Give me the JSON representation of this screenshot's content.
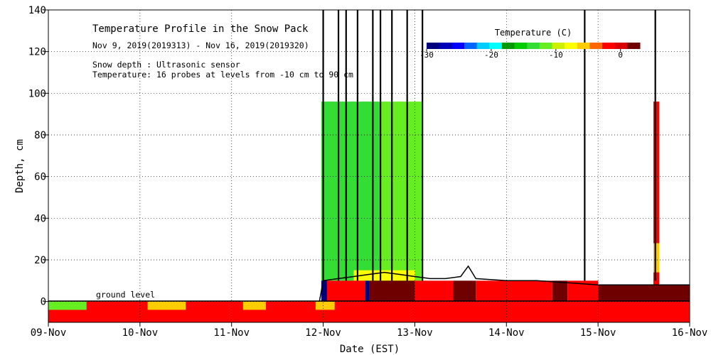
{
  "chart_data": {
    "type": "heatmap",
    "title": "Temperature Profile in the Snow Pack",
    "subtitle": "Nov  9, 2019(2019313) - Nov 16, 2019(2019320)",
    "notes": [
      "Snow depth : Ultrasonic sensor",
      "Temperature: 16 probes at levels from -10 cm to 90 cm"
    ],
    "xlabel": "Date (EST)",
    "ylabel": "Depth, cm",
    "x_ticks": [
      "09-Nov",
      "10-Nov",
      "11-Nov",
      "12-Nov",
      "13-Nov",
      "14-Nov",
      "15-Nov",
      "16-Nov"
    ],
    "xlim": [
      "2019-11-09",
      "2019-11-16"
    ],
    "y_ticks": [
      0,
      20,
      40,
      60,
      80,
      100,
      120,
      140
    ],
    "ylim": [
      -10,
      140
    ],
    "grid": true,
    "ground_level_label": "ground level",
    "colorbar": {
      "title": "Temperature (C)",
      "min": -30,
      "max": 3,
      "tick_values": [
        -30,
        -20,
        -10,
        0
      ],
      "tick_labels": [
        "-30",
        "-20",
        "-10",
        "0"
      ],
      "colors": [
        "#00007f",
        "#0000b8",
        "#0000ff",
        "#0066ff",
        "#00ccff",
        "#00ffff",
        "#009900",
        "#00cc00",
        "#33dd33",
        "#66ee22",
        "#ccf000",
        "#ffff00",
        "#ffcc00",
        "#ff6600",
        "#ff0000",
        "#d80000",
        "#6e0000"
      ]
    },
    "regions": [
      {
        "name": "soil-layer",
        "t0": "2019-11-09T00:00",
        "t1": "2019-11-16T00:00",
        "d0": -10,
        "d1": 0,
        "color": "#ff0000"
      },
      {
        "name": "surface-cool-1",
        "t0": "2019-11-09T00:00",
        "t1": "2019-11-09T10:00",
        "d0": -4,
        "d1": 0,
        "color": "#66ee22"
      },
      {
        "name": "surface-cool-2",
        "t0": "2019-11-10T02:00",
        "t1": "2019-11-10T12:00",
        "d0": -4,
        "d1": 0,
        "color": "#ffcc00"
      },
      {
        "name": "surface-cool-3",
        "t0": "2019-11-11T03:00",
        "t1": "2019-11-11T09:00",
        "d0": -4,
        "d1": 0,
        "color": "#ffcc00"
      },
      {
        "name": "surface-cool-4",
        "t0": "2019-11-11T22:00",
        "t1": "2019-11-12T03:00",
        "d0": -4,
        "d1": 0,
        "color": "#ffcc00"
      },
      {
        "name": "snow-cold-mid",
        "t0": "2019-11-11T23:30",
        "t1": "2019-11-12T15:00",
        "d0": 10,
        "d1": 96,
        "color": "#33dd33"
      },
      {
        "name": "snow-cold-late",
        "t0": "2019-11-12T15:00",
        "t1": "2019-11-13T02:00",
        "d0": 10,
        "d1": 96,
        "color": "#66ee22"
      },
      {
        "name": "snow-warm-layer",
        "t0": "2019-11-12T08:00",
        "t1": "2019-11-13T00:00",
        "d0": 10,
        "d1": 15,
        "color": "#ffff00"
      },
      {
        "name": "base-blue-1",
        "t0": "2019-11-11T23:30",
        "t1": "2019-11-12T01:00",
        "d0": 0,
        "d1": 10,
        "color": "#00007f"
      },
      {
        "name": "base-red-1",
        "t0": "2019-11-12T01:00",
        "t1": "2019-11-12T11:00",
        "d0": 0,
        "d1": 10,
        "color": "#ff0000"
      },
      {
        "name": "base-blue-2",
        "t0": "2019-11-12T11:00",
        "t1": "2019-11-12T12:00",
        "d0": 0,
        "d1": 10,
        "color": "#00007f"
      },
      {
        "name": "base-dark-1",
        "t0": "2019-11-12T12:00",
        "t1": "2019-11-13T00:00",
        "d0": 0,
        "d1": 10,
        "color": "#6e0000"
      },
      {
        "name": "base-red-2",
        "t0": "2019-11-13T00:00",
        "t1": "2019-11-13T10:00",
        "d0": 0,
        "d1": 10,
        "color": "#ff0000"
      },
      {
        "name": "base-dark-2",
        "t0": "2019-11-13T10:00",
        "t1": "2019-11-13T16:00",
        "d0": 0,
        "d1": 10,
        "color": "#6e0000"
      },
      {
        "name": "base-red-3",
        "t0": "2019-11-13T16:00",
        "t1": "2019-11-14T12:00",
        "d0": 0,
        "d1": 10,
        "color": "#ff0000"
      },
      {
        "name": "base-dark-3",
        "t0": "2019-11-14T12:00",
        "t1": "2019-11-14T16:00",
        "d0": 0,
        "d1": 10,
        "color": "#6e0000"
      },
      {
        "name": "base-red-4",
        "t0": "2019-11-14T16:00",
        "t1": "2019-11-15T00:00",
        "d0": 0,
        "d1": 10,
        "color": "#ff0000"
      },
      {
        "name": "base-dark-4",
        "t0": "2019-11-15T00:00",
        "t1": "2019-11-16T00:00",
        "d0": 0,
        "d1": 8,
        "color": "#6e0000"
      },
      {
        "name": "spike-red",
        "t0": "2019-11-15T14:30",
        "t1": "2019-11-15T16:00",
        "d0": 8,
        "d1": 96,
        "color": "#ff0000"
      },
      {
        "name": "spike-orange",
        "t0": "2019-11-15T14:30",
        "t1": "2019-11-15T16:00",
        "d0": 14,
        "d1": 28,
        "color": "#ffcc00"
      }
    ],
    "snow_depth_series": [
      [
        "2019-11-11T23:00",
        0
      ],
      [
        "2019-11-12T00:00",
        10
      ],
      [
        "2019-11-12T04:00",
        11
      ],
      [
        "2019-11-12T08:00",
        12
      ],
      [
        "2019-11-12T12:00",
        13
      ],
      [
        "2019-11-12T16:00",
        14
      ],
      [
        "2019-11-12T20:00",
        13
      ],
      [
        "2019-11-13T00:00",
        12
      ],
      [
        "2019-11-13T04:00",
        11
      ],
      [
        "2019-11-13T08:00",
        11
      ],
      [
        "2019-11-13T12:00",
        12
      ],
      [
        "2019-11-13T14:00",
        17
      ],
      [
        "2019-11-13T16:00",
        11
      ],
      [
        "2019-11-14T00:00",
        10
      ],
      [
        "2019-11-14T08:00",
        10
      ],
      [
        "2019-11-14T16:00",
        9
      ],
      [
        "2019-11-15T00:00",
        8
      ],
      [
        "2019-11-15T08:00",
        8
      ],
      [
        "2019-11-15T16:00",
        8
      ],
      [
        "2019-11-16T00:00",
        8
      ]
    ],
    "snow_depth_spikes": [
      [
        "2019-11-12T00:00",
        140
      ],
      [
        "2019-11-12T04:00",
        140
      ],
      [
        "2019-11-12T06:00",
        140
      ],
      [
        "2019-11-12T09:00",
        140
      ],
      [
        "2019-11-12T13:00",
        140
      ],
      [
        "2019-11-12T15:00",
        140
      ],
      [
        "2019-11-12T18:00",
        140
      ],
      [
        "2019-11-12T22:00",
        140
      ],
      [
        "2019-11-13T02:00",
        140
      ],
      [
        "2019-11-14T20:30",
        140
      ],
      [
        "2019-11-15T15:00",
        140
      ]
    ]
  }
}
